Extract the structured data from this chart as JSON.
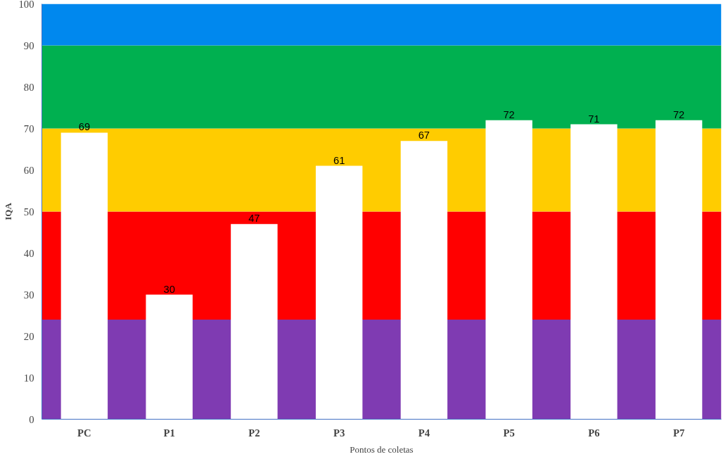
{
  "chart_data": {
    "type": "bar",
    "xlabel": "Pontos de coletas",
    "ylabel": "IQA",
    "categories": [
      "PC",
      "P1",
      "P2",
      "P3",
      "P4",
      "P5",
      "P6",
      "P7"
    ],
    "values": [
      69,
      30,
      47,
      61,
      67,
      72,
      71,
      72
    ],
    "color": "#ffffff",
    "data_labels": true,
    "ylim": [
      0,
      100
    ],
    "yticks": [
      0,
      10,
      20,
      30,
      40,
      50,
      60,
      70,
      80,
      90,
      100
    ],
    "grid": false,
    "bands": [
      {
        "axis": "y",
        "from": 0,
        "to": 24,
        "color": "#7f3bb2"
      },
      {
        "axis": "y",
        "from": 24,
        "to": 50,
        "color": "#ff0000"
      },
      {
        "axis": "y",
        "from": 50,
        "to": 70,
        "color": "#ffcc00"
      },
      {
        "axis": "y",
        "from": 70,
        "to": 90,
        "color": "#00b050"
      },
      {
        "axis": "y",
        "from": 90,
        "to": 100,
        "color": "#0088ee"
      }
    ]
  }
}
